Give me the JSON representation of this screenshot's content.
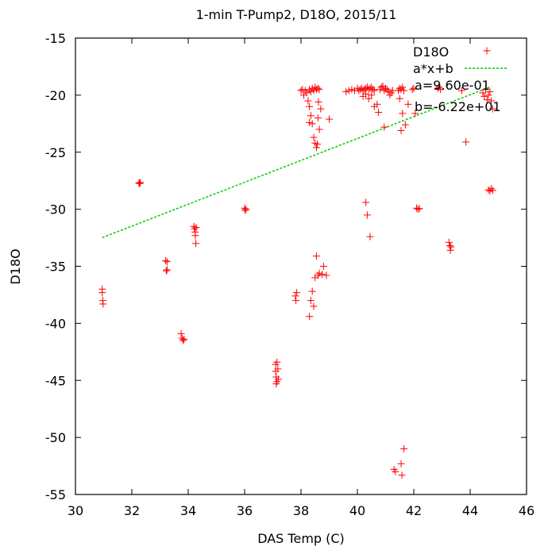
{
  "chart_data": {
    "type": "scatter",
    "title": "1-min T-Pump2, D18O, 2015/11",
    "xlabel": "DAS Temp (C)",
    "ylabel": "D18O",
    "xlim": [
      30,
      46
    ],
    "ylim": [
      -55,
      -15
    ],
    "xticks": [
      30,
      32,
      34,
      36,
      38,
      40,
      42,
      44,
      46
    ],
    "yticks": [
      -15,
      -20,
      -25,
      -30,
      -35,
      -40,
      -45,
      -50,
      -55
    ],
    "grid": false,
    "legend_position": "top-right",
    "colors": {
      "points": "#ff0000",
      "fit": "#00cc00"
    },
    "series": [
      {
        "name": "D18O",
        "points": [
          [
            30.95,
            -37.0
          ],
          [
            30.95,
            -37.3
          ],
          [
            30.97,
            -38.0
          ],
          [
            30.98,
            -38.3
          ],
          [
            32.25,
            -27.7
          ],
          [
            32.28,
            -27.75
          ],
          [
            32.3,
            -27.65
          ],
          [
            33.2,
            -34.5
          ],
          [
            33.22,
            -35.4
          ],
          [
            33.25,
            -34.6
          ],
          [
            33.25,
            -35.3
          ],
          [
            33.75,
            -40.9
          ],
          [
            33.78,
            -41.3
          ],
          [
            33.82,
            -41.5
          ],
          [
            33.85,
            -41.4
          ],
          [
            34.2,
            -31.5
          ],
          [
            34.22,
            -31.7
          ],
          [
            34.25,
            -32.0
          ],
          [
            34.25,
            -32.3
          ],
          [
            34.27,
            -33.0
          ],
          [
            34.28,
            -31.6
          ],
          [
            36.0,
            -29.9
          ],
          [
            36.02,
            -30.1
          ],
          [
            36.05,
            -30.0
          ],
          [
            37.1,
            -43.6
          ],
          [
            37.1,
            -44.2
          ],
          [
            37.12,
            -44.7
          ],
          [
            37.15,
            -45.1
          ],
          [
            37.15,
            -43.4
          ],
          [
            37.18,
            -44.0
          ],
          [
            37.2,
            -44.9
          ],
          [
            37.12,
            -45.3
          ],
          [
            37.8,
            -37.6
          ],
          [
            37.82,
            -38.0
          ],
          [
            37.85,
            -37.3
          ],
          [
            38.0,
            -19.6
          ],
          [
            38.05,
            -19.5
          ],
          [
            38.1,
            -20.0
          ],
          [
            38.15,
            -19.6
          ],
          [
            38.2,
            -19.8
          ],
          [
            38.25,
            -20.5
          ],
          [
            38.3,
            -19.5
          ],
          [
            38.35,
            -19.7
          ],
          [
            38.4,
            -19.4
          ],
          [
            38.45,
            -19.6
          ],
          [
            38.5,
            -19.3
          ],
          [
            38.55,
            -19.5
          ],
          [
            38.6,
            -19.4
          ],
          [
            38.65,
            -19.5
          ],
          [
            38.3,
            -21.0
          ],
          [
            38.35,
            -21.8
          ],
          [
            38.4,
            -22.5
          ],
          [
            38.45,
            -23.7
          ],
          [
            38.5,
            -24.2
          ],
          [
            38.55,
            -24.6
          ],
          [
            38.6,
            -22.0
          ],
          [
            38.65,
            -23.0
          ],
          [
            38.7,
            -21.2
          ],
          [
            38.62,
            -20.6
          ],
          [
            38.58,
            -24.3
          ],
          [
            38.3,
            -22.4
          ],
          [
            38.3,
            -39.4
          ],
          [
            38.35,
            -38.0
          ],
          [
            38.4,
            -37.2
          ],
          [
            38.45,
            -38.5
          ],
          [
            38.5,
            -36.0
          ],
          [
            38.55,
            -34.1
          ],
          [
            38.6,
            -35.8
          ],
          [
            38.65,
            -35.6
          ],
          [
            38.75,
            -35.7
          ],
          [
            38.8,
            -35.0
          ],
          [
            38.9,
            -35.8
          ],
          [
            39.0,
            -22.1
          ],
          [
            39.6,
            -19.7
          ],
          [
            39.7,
            -19.6
          ],
          [
            39.8,
            -19.5
          ],
          [
            39.9,
            -19.6
          ],
          [
            40.0,
            -19.4
          ],
          [
            40.05,
            -19.6
          ],
          [
            40.1,
            -19.5
          ],
          [
            40.15,
            -19.4
          ],
          [
            40.2,
            -19.6
          ],
          [
            40.25,
            -19.5
          ],
          [
            40.3,
            -19.4
          ],
          [
            40.35,
            -19.3
          ],
          [
            40.4,
            -19.5
          ],
          [
            40.45,
            -19.4
          ],
          [
            40.5,
            -19.3
          ],
          [
            40.55,
            -19.5
          ],
          [
            40.6,
            -19.6
          ],
          [
            40.2,
            -20.1
          ],
          [
            40.3,
            -19.9
          ],
          [
            40.4,
            -20.3
          ],
          [
            40.5,
            -20.0
          ],
          [
            40.7,
            -20.8
          ],
          [
            40.8,
            -19.5
          ],
          [
            40.85,
            -19.3
          ],
          [
            40.9,
            -19.2
          ],
          [
            40.95,
            -19.6
          ],
          [
            41.0,
            -19.4
          ],
          [
            41.05,
            -19.5
          ],
          [
            41.1,
            -19.7
          ],
          [
            41.15,
            -20.0
          ],
          [
            41.2,
            -19.8
          ],
          [
            41.25,
            -19.6
          ],
          [
            40.6,
            -21.0
          ],
          [
            40.75,
            -21.5
          ],
          [
            40.95,
            -22.8
          ],
          [
            41.45,
            -19.6
          ],
          [
            41.5,
            -19.4
          ],
          [
            41.55,
            -19.5
          ],
          [
            41.6,
            -19.3
          ],
          [
            41.65,
            -19.6
          ],
          [
            41.5,
            -20.3
          ],
          [
            41.6,
            -21.6
          ],
          [
            41.7,
            -22.6
          ],
          [
            41.55,
            -23.1
          ],
          [
            41.8,
            -20.8
          ],
          [
            41.95,
            -19.5
          ],
          [
            42.0,
            -19.4
          ],
          [
            42.05,
            -21.6
          ],
          [
            40.3,
            -29.4
          ],
          [
            40.35,
            -30.5
          ],
          [
            40.45,
            -32.4
          ],
          [
            42.1,
            -29.9
          ],
          [
            42.15,
            -30.0
          ],
          [
            42.2,
            -29.95
          ],
          [
            41.3,
            -52.8
          ],
          [
            41.35,
            -53.0
          ],
          [
            41.55,
            -52.3
          ],
          [
            41.65,
            -51.0
          ],
          [
            41.58,
            -53.3
          ],
          [
            42.85,
            -19.4
          ],
          [
            42.9,
            -19.3
          ],
          [
            42.95,
            -19.5
          ],
          [
            43.25,
            -32.9
          ],
          [
            43.28,
            -33.2
          ],
          [
            43.3,
            -33.6
          ],
          [
            43.32,
            -33.3
          ],
          [
            43.7,
            -19.6
          ],
          [
            43.85,
            -24.1
          ],
          [
            44.45,
            -19.8
          ],
          [
            44.5,
            -20.1
          ],
          [
            44.55,
            -19.5
          ],
          [
            44.6,
            -20.4
          ],
          [
            44.65,
            -20.0
          ],
          [
            44.7,
            -19.7
          ],
          [
            44.75,
            -20.5
          ],
          [
            44.8,
            -21.2
          ],
          [
            44.65,
            -28.3
          ],
          [
            44.7,
            -28.4
          ],
          [
            44.75,
            -28.2
          ],
          [
            44.8,
            -28.35
          ]
        ]
      },
      {
        "name": "a*x+b",
        "fit": {
          "a": 0.96,
          "b": -62.2,
          "x_range": [
            30.95,
            44.75
          ]
        }
      }
    ],
    "annotations": [
      "a=9.60e-01",
      "b=-6.22e+01"
    ]
  }
}
